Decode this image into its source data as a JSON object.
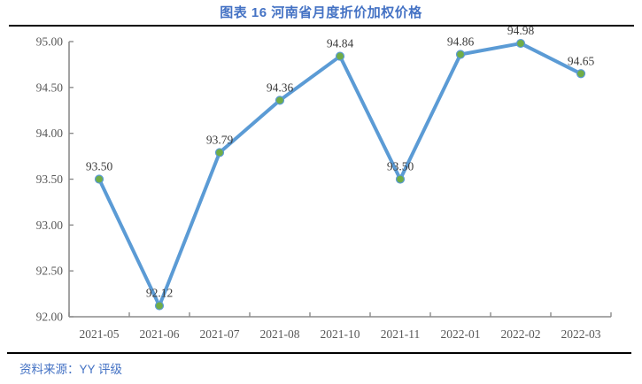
{
  "page": {
    "source": "资料来源：YY 评级"
  },
  "colors": {
    "title_accent": "#4472C4",
    "line": "#5B9BD5",
    "marker": "#70AD47",
    "axis": "#8C8C8C",
    "label_text": "#3b3b3b"
  },
  "chart_data": {
    "type": "line",
    "title": "图表 16 河南省月度折价加权价格",
    "categories": [
      "2021-05",
      "2021-06",
      "2021-07",
      "2021-08",
      "2021-10",
      "2021-11",
      "2022-01",
      "2022-02",
      "2022-03"
    ],
    "values": [
      93.5,
      92.12,
      93.79,
      94.36,
      94.84,
      93.5,
      94.86,
      94.98,
      94.65
    ],
    "point_labels": [
      "93.50",
      "92.12",
      "93.79",
      "94.36",
      "94.84",
      "93.50",
      "94.86",
      "94.98",
      "94.65"
    ],
    "ytick_labels": [
      "95.00",
      "94.50",
      "94.00",
      "93.50",
      "93.00",
      "92.50",
      "92.00"
    ],
    "ylim": [
      92.0,
      95.0
    ],
    "xlabel": "",
    "ylabel": "",
    "grid": false,
    "legend": "none",
    "line_color": "#5B9BD5",
    "marker_color": "#70AD47"
  }
}
